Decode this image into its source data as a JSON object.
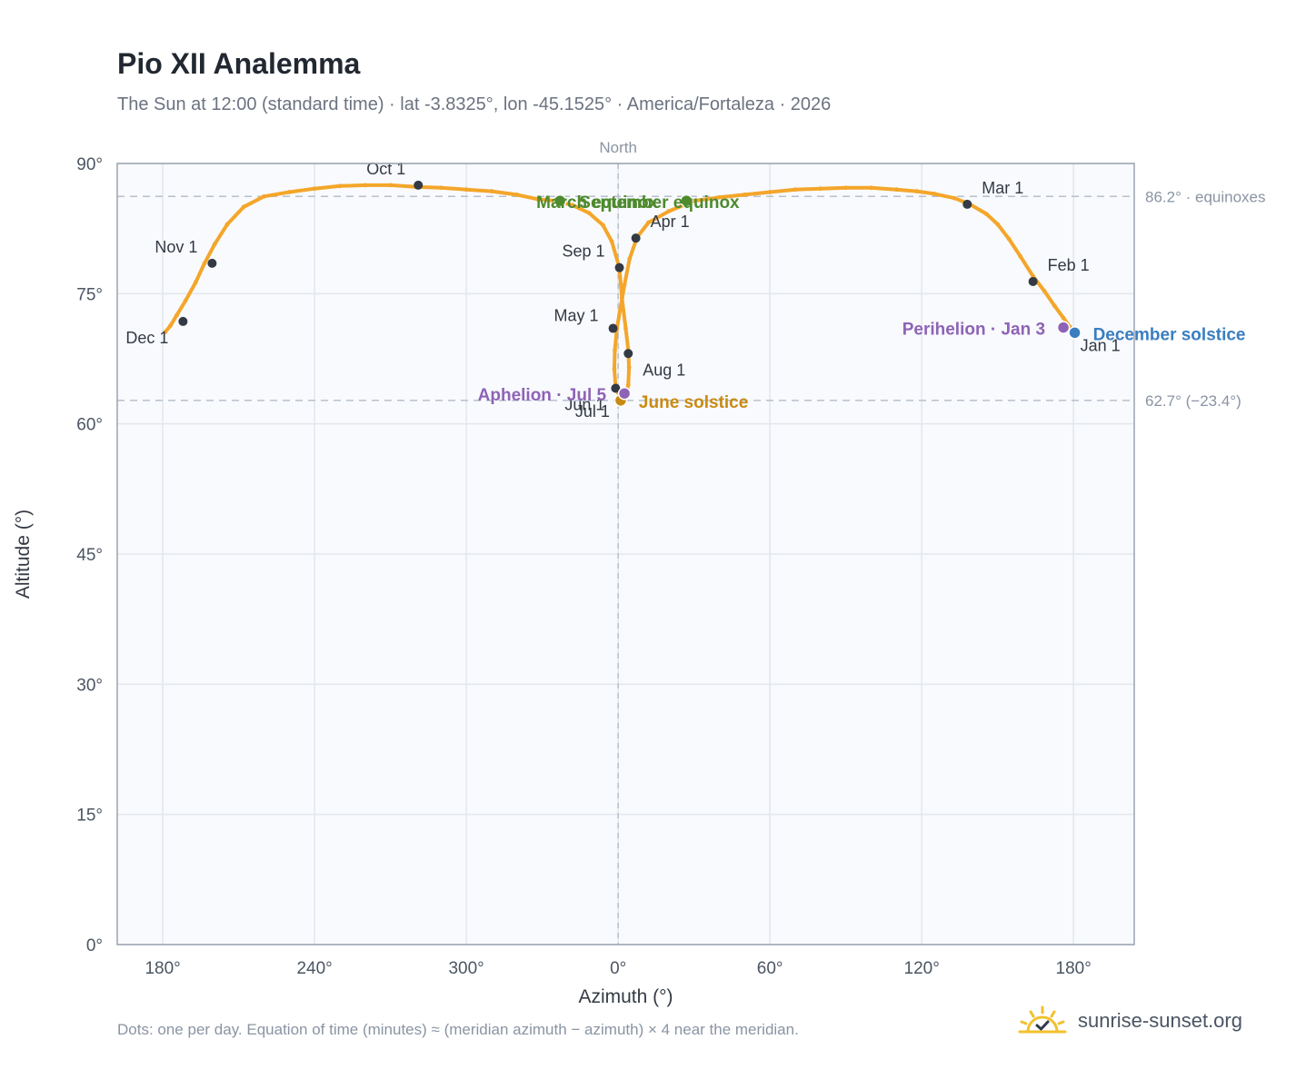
{
  "title": "Pio XII Analemma",
  "subtitle": "The Sun at 12:00 (standard time) · lat -3.8325°, lon -45.1525° · America/Fortaleza · 2026",
  "footnote": "Dots: one per day. Equation of time (minutes) ≈ (meridian azimuth − azimuth) × 4 near the meridian.",
  "brand": {
    "name": "sunrise-sunset.org",
    "icon": "sun-check-icon"
  },
  "colors": {
    "curve": "#f4a62a",
    "month_marker": "#343a44",
    "equinox": "#4e8a2e",
    "june_solstice": "#c98a12",
    "december_solstice": "#3a7ec0",
    "apsis": "#8e63b6",
    "reference_line": "#b8c0ca",
    "plot_bg": "#f8fafd",
    "grid": "#e3e7ee"
  },
  "chart_data": {
    "type": "scatter",
    "xlabel": "Azimuth (°)",
    "ylabel": "Altitude (°)",
    "x_ticks": [
      "180°",
      "240°",
      "300°",
      "0°",
      "60°",
      "120°",
      "180°"
    ],
    "x_tick_values": [
      -180,
      -120,
      -60,
      0,
      60,
      120,
      180
    ],
    "y_ticks": [
      "0°",
      "15°",
      "30°",
      "45°",
      "60°",
      "75°",
      "90°"
    ],
    "y_tick_values": [
      0,
      15,
      30,
      45,
      60,
      75,
      90
    ],
    "xlim": [
      -198,
      204
    ],
    "ylim": [
      0,
      90
    ],
    "north_label": "North",
    "grid": true,
    "reference_lines": [
      {
        "y": 86.2,
        "label": "86.2° · equinoxes"
      },
      {
        "y": 62.7,
        "label": "62.7° (−23.4°)"
      }
    ],
    "series": [
      {
        "points": [
          [
            180.5,
            70.5
          ],
          [
            178.5,
            71.2
          ],
          [
            176.0,
            72.2
          ],
          [
            172.5,
            73.6
          ],
          [
            168.5,
            75.3
          ],
          [
            164.0,
            77.0
          ],
          [
            159.0,
            79.3
          ],
          [
            154.5,
            81.3
          ],
          [
            150.0,
            83.0
          ],
          [
            145.5,
            84.2
          ],
          [
            139.0,
            85.3
          ],
          [
            133.0,
            86.0
          ],
          [
            125.0,
            86.5
          ],
          [
            118.0,
            86.8
          ],
          [
            110.0,
            87.0
          ],
          [
            100.0,
            87.2
          ],
          [
            90.0,
            87.2
          ],
          [
            80.0,
            87.1
          ],
          [
            70.0,
            87.0
          ],
          [
            60.0,
            86.7
          ],
          [
            50.0,
            86.4
          ],
          [
            40.0,
            86.1
          ],
          [
            30.0,
            85.7
          ],
          [
            20.0,
            84.5
          ],
          [
            12.0,
            83.2
          ],
          [
            7.5,
            81.5
          ],
          [
            4.5,
            79.0
          ],
          [
            2.5,
            76.0
          ],
          [
            1.0,
            73.5
          ],
          [
            -0.5,
            71.0
          ],
          [
            -1.3,
            68.5
          ],
          [
            -1.5,
            66.3
          ],
          [
            -1.0,
            64.2
          ],
          [
            0.5,
            63.2
          ],
          [
            1.5,
            62.8
          ],
          [
            3.0,
            63.3
          ],
          [
            4.0,
            64.5
          ],
          [
            4.3,
            66.5
          ],
          [
            4.0,
            68.5
          ],
          [
            3.0,
            71.0
          ],
          [
            1.5,
            74.5
          ],
          [
            0.5,
            78.0
          ],
          [
            -2.5,
            81.0
          ],
          [
            -6.0,
            82.9
          ],
          [
            -11.5,
            84.3
          ],
          [
            -18.0,
            85.2
          ],
          [
            -25.0,
            85.7
          ],
          [
            -32.0,
            85.9
          ],
          [
            -40.0,
            86.4
          ],
          [
            -50.0,
            86.8
          ],
          [
            -60.0,
            87.0
          ],
          [
            -70.0,
            87.2
          ],
          [
            -80.0,
            87.3
          ],
          [
            -90.0,
            87.5
          ],
          [
            -100.0,
            87.5
          ],
          [
            -110.0,
            87.4
          ],
          [
            -120.0,
            87.1
          ],
          [
            -130.0,
            86.7
          ],
          [
            -140.0,
            86.2
          ],
          [
            -148.0,
            85.0
          ],
          [
            -154.5,
            83.0
          ],
          [
            -159.5,
            80.7
          ],
          [
            -163.5,
            78.5
          ],
          [
            -167.0,
            76.3
          ],
          [
            -171.0,
            74.2
          ],
          [
            -174.5,
            72.5
          ],
          [
            -177.0,
            71.3
          ],
          [
            -179.0,
            70.6
          ]
        ]
      }
    ],
    "month_markers": [
      {
        "label": "Jan 1",
        "x": 180.5,
        "y": 70.5
      },
      {
        "label": "Feb 1",
        "x": 164.0,
        "y": 76.4
      },
      {
        "label": "Mar 1",
        "x": 138.0,
        "y": 85.3
      },
      {
        "label": "Apr 1",
        "x": 7.0,
        "y": 81.4
      },
      {
        "label": "May 1",
        "x": -2.0,
        "y": 71.0
      },
      {
        "label": "Jun 1",
        "x": -1.0,
        "y": 64.1
      },
      {
        "label": "Jul 1",
        "x": 1.0,
        "y": 62.9
      },
      {
        "label": "Aug 1",
        "x": 4.0,
        "y": 68.1
      },
      {
        "label": "Sep 1",
        "x": 0.5,
        "y": 78.0
      },
      {
        "label": "Oct 1",
        "x": -79.0,
        "y": 87.5
      },
      {
        "label": "Nov 1",
        "x": -160.5,
        "y": 78.5
      },
      {
        "label": "Dec 1",
        "x": -172.0,
        "y": 71.8
      }
    ],
    "events": [
      {
        "label": "March equinox",
        "x": -23.0,
        "y": 85.7,
        "kind": "equinox"
      },
      {
        "label": "September equinox",
        "x": 27.0,
        "y": 85.7,
        "kind": "equinox"
      },
      {
        "label": "June solstice",
        "x": 1.0,
        "y": 62.7,
        "kind": "june_solstice"
      },
      {
        "label": "December solstice",
        "x": 180.5,
        "y": 70.5,
        "kind": "december_solstice"
      },
      {
        "label": "Aphelion · Jul 5",
        "x": 2.5,
        "y": 63.5,
        "kind": "apsis"
      },
      {
        "label": "Perihelion · Jan 3",
        "x": 176.0,
        "y": 71.1,
        "kind": "apsis"
      }
    ]
  }
}
